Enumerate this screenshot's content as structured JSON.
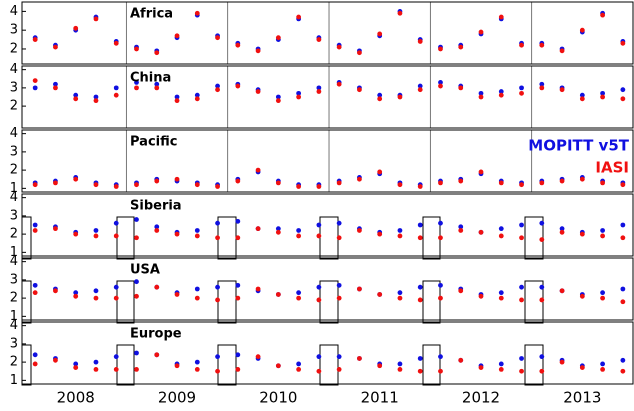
{
  "chart_data": [
    {
      "type": "scatter",
      "title": "Africa",
      "xlim": [
        2007.97,
        2014.0
      ],
      "ylim": [
        1.2,
        4.5
      ],
      "yticks": [
        2,
        3,
        4
      ],
      "vlines": [
        2009,
        2010,
        2011,
        2012,
        2013
      ],
      "x": [
        2008.1,
        2008.3,
        2008.5,
        2008.7,
        2008.9,
        2009.1,
        2009.3,
        2009.5,
        2009.7,
        2009.9,
        2010.1,
        2010.3,
        2010.5,
        2010.7,
        2010.9,
        2011.1,
        2011.3,
        2011.5,
        2011.7,
        2011.9,
        2012.1,
        2012.3,
        2012.5,
        2012.7,
        2012.9,
        2013.1,
        2013.3,
        2013.5,
        2013.7,
        2013.9
      ],
      "series": [
        {
          "color": "#1010e0",
          "values": [
            2.6,
            2.2,
            3.0,
            3.7,
            2.4,
            2.1,
            1.9,
            2.6,
            3.8,
            2.7,
            2.3,
            2.0,
            2.5,
            3.6,
            2.6,
            2.2,
            1.9,
            2.7,
            4.0,
            2.5,
            2.1,
            2.2,
            2.8,
            3.6,
            2.3,
            2.3,
            2.0,
            2.9,
            3.9,
            2.4
          ]
        },
        {
          "color": "#f01010",
          "values": [
            2.5,
            2.1,
            3.1,
            3.6,
            2.3,
            2.0,
            1.8,
            2.7,
            3.9,
            2.6,
            2.2,
            1.9,
            2.6,
            3.7,
            2.5,
            2.1,
            1.8,
            2.8,
            3.9,
            2.4,
            2.0,
            2.1,
            2.9,
            3.7,
            2.2,
            2.2,
            1.9,
            3.0,
            3.8,
            2.3
          ]
        }
      ]
    },
    {
      "type": "scatter",
      "title": "China",
      "xlim": [
        2007.97,
        2014.0
      ],
      "ylim": [
        0.8,
        4.2
      ],
      "yticks": [
        2,
        3,
        4
      ],
      "vlines": [
        2009,
        2010,
        2011,
        2012,
        2013
      ],
      "x": [
        2008.1,
        2008.3,
        2008.5,
        2008.7,
        2008.9,
        2009.1,
        2009.3,
        2009.5,
        2009.7,
        2009.9,
        2010.1,
        2010.3,
        2010.5,
        2010.7,
        2010.9,
        2011.1,
        2011.3,
        2011.5,
        2011.7,
        2011.9,
        2012.1,
        2012.3,
        2012.5,
        2012.7,
        2012.9,
        2013.1,
        2013.3,
        2013.5,
        2013.7,
        2013.9
      ],
      "series": [
        {
          "color": "#1010e0",
          "values": [
            3.0,
            3.2,
            2.6,
            2.5,
            3.0,
            3.3,
            3.2,
            2.5,
            2.6,
            3.1,
            3.2,
            2.9,
            2.5,
            2.7,
            3.0,
            3.3,
            3.0,
            2.6,
            2.6,
            3.1,
            3.3,
            3.1,
            2.7,
            2.8,
            3.0,
            3.2,
            3.0,
            2.6,
            2.7,
            2.9
          ]
        },
        {
          "color": "#f01010",
          "values": [
            3.4,
            3.0,
            2.4,
            2.3,
            2.6,
            3.0,
            3.0,
            2.3,
            2.4,
            2.9,
            3.1,
            2.8,
            2.3,
            2.5,
            2.8,
            3.2,
            2.9,
            2.4,
            2.5,
            2.9,
            3.1,
            3.0,
            2.5,
            2.6,
            2.7,
            3.0,
            2.9,
            2.4,
            2.5,
            2.4
          ]
        }
      ]
    },
    {
      "type": "scatter",
      "title": "Pacific",
      "xlim": [
        2007.97,
        2014.0
      ],
      "ylim": [
        0.8,
        4.2
      ],
      "yticks": [
        1,
        2,
        3,
        4
      ],
      "vlines": [
        2009,
        2010,
        2011,
        2012,
        2013
      ],
      "legend": "right",
      "x": [
        2008.1,
        2008.3,
        2008.5,
        2008.7,
        2008.9,
        2009.1,
        2009.3,
        2009.5,
        2009.7,
        2009.9,
        2010.1,
        2010.3,
        2010.5,
        2010.7,
        2010.9,
        2011.1,
        2011.3,
        2011.5,
        2011.7,
        2011.9,
        2012.1,
        2012.3,
        2012.5,
        2012.7,
        2012.9,
        2013.1,
        2013.3,
        2013.5,
        2013.7,
        2013.9
      ],
      "series": [
        {
          "name": "MOPITT v5T",
          "color": "#1010e0",
          "values": [
            1.3,
            1.4,
            1.6,
            1.3,
            1.2,
            1.3,
            1.5,
            1.4,
            1.3,
            1.2,
            1.5,
            1.9,
            1.4,
            1.2,
            1.2,
            1.4,
            1.6,
            1.8,
            1.3,
            1.2,
            1.4,
            1.5,
            1.8,
            1.4,
            1.3,
            1.4,
            1.5,
            1.6,
            1.4,
            1.3
          ]
        },
        {
          "name": "IASI",
          "color": "#f01010",
          "values": [
            1.2,
            1.3,
            1.5,
            1.2,
            1.1,
            1.2,
            1.4,
            1.5,
            1.2,
            1.1,
            1.4,
            2.0,
            1.3,
            1.1,
            1.1,
            1.3,
            1.5,
            1.9,
            1.2,
            1.1,
            1.3,
            1.4,
            1.9,
            1.3,
            1.2,
            1.3,
            1.4,
            1.5,
            1.3,
            1.2
          ]
        }
      ]
    },
    {
      "type": "scatter",
      "title": "Siberia",
      "xlim": [
        2007.97,
        2014.0
      ],
      "ylim": [
        0.8,
        4.2
      ],
      "yticks": [
        1,
        2,
        3,
        4
      ],
      "x": [
        2008.1,
        2008.3,
        2008.5,
        2008.7,
        2008.9,
        2009.1,
        2009.3,
        2009.5,
        2009.7,
        2009.9,
        2010.1,
        2010.3,
        2010.5,
        2010.7,
        2010.9,
        2011.1,
        2011.3,
        2011.5,
        2011.7,
        2011.9,
        2012.1,
        2012.3,
        2012.5,
        2012.7,
        2012.9,
        2013.1,
        2013.3,
        2013.5,
        2013.7,
        2013.9
      ],
      "series": [
        {
          "color": "#1010e0",
          "values": [
            2.5,
            2.4,
            2.1,
            2.2,
            2.6,
            2.8,
            2.4,
            2.1,
            2.2,
            2.6,
            2.7,
            2.3,
            2.3,
            2.2,
            2.5,
            2.6,
            2.3,
            2.1,
            2.2,
            2.5,
            2.6,
            2.4,
            2.1,
            2.3,
            2.5,
            2.6,
            2.3,
            2.1,
            2.2,
            2.5
          ]
        },
        {
          "color": "#f01010",
          "values": [
            2.2,
            2.3,
            2.0,
            1.9,
            1.9,
            1.8,
            2.2,
            2.0,
            1.9,
            1.8,
            1.8,
            2.3,
            2.1,
            1.9,
            1.9,
            1.8,
            2.2,
            2.0,
            1.9,
            1.8,
            1.8,
            2.2,
            2.1,
            1.9,
            1.8,
            1.7,
            2.1,
            2.0,
            1.9,
            1.8
          ]
        }
      ]
    },
    {
      "type": "scatter",
      "title": "USA",
      "xlim": [
        2007.97,
        2014.0
      ],
      "ylim": [
        0.8,
        4.2
      ],
      "yticks": [
        1,
        2,
        3,
        4
      ],
      "x": [
        2008.1,
        2008.3,
        2008.5,
        2008.7,
        2008.9,
        2009.1,
        2009.3,
        2009.5,
        2009.7,
        2009.9,
        2010.1,
        2010.3,
        2010.5,
        2010.7,
        2010.9,
        2011.1,
        2011.3,
        2011.5,
        2011.7,
        2011.9,
        2012.1,
        2012.3,
        2012.5,
        2012.7,
        2012.9,
        2013.1,
        2013.3,
        2013.5,
        2013.7,
        2013.9
      ],
      "series": [
        {
          "color": "#1010e0",
          "values": [
            2.7,
            2.5,
            2.3,
            2.4,
            2.6,
            2.9,
            2.6,
            2.3,
            2.5,
            2.6,
            2.7,
            2.4,
            2.2,
            2.3,
            2.6,
            2.7,
            2.5,
            2.2,
            2.3,
            2.6,
            2.7,
            2.5,
            2.2,
            2.3,
            2.6,
            2.6,
            2.4,
            2.2,
            2.3,
            2.5
          ]
        },
        {
          "color": "#f01010",
          "values": [
            2.3,
            2.4,
            2.1,
            2.0,
            2.0,
            2.1,
            2.6,
            2.2,
            2.0,
            1.9,
            2.0,
            2.5,
            2.2,
            2.0,
            1.9,
            2.0,
            2.5,
            2.2,
            2.0,
            1.9,
            2.0,
            2.4,
            2.1,
            2.0,
            1.9,
            1.9,
            2.4,
            2.1,
            2.0,
            1.8
          ]
        }
      ]
    },
    {
      "type": "scatter",
      "title": "Europe",
      "xlim": [
        2007.97,
        2014.0
      ],
      "ylim": [
        0.8,
        4.2
      ],
      "yticks": [
        1,
        2,
        3,
        4
      ],
      "xticks": [
        {
          "value": 2008.5,
          "label": "2008"
        },
        {
          "value": 2009.5,
          "label": "2009"
        },
        {
          "value": 2010.5,
          "label": "2010"
        },
        {
          "value": 2011.5,
          "label": "2011"
        },
        {
          "value": 2012.5,
          "label": "2012"
        },
        {
          "value": 2013.5,
          "label": "2013"
        }
      ],
      "x": [
        2008.1,
        2008.3,
        2008.5,
        2008.7,
        2008.9,
        2009.1,
        2009.3,
        2009.5,
        2009.7,
        2009.9,
        2010.1,
        2010.3,
        2010.5,
        2010.7,
        2010.9,
        2011.1,
        2011.3,
        2011.5,
        2011.7,
        2011.9,
        2012.1,
        2012.3,
        2012.5,
        2012.7,
        2012.9,
        2013.1,
        2013.3,
        2013.5,
        2013.7,
        2013.9
      ],
      "series": [
        {
          "color": "#1010e0",
          "values": [
            2.4,
            2.2,
            1.9,
            2.0,
            2.3,
            2.5,
            2.4,
            1.9,
            2.0,
            2.3,
            2.4,
            2.2,
            1.8,
            1.9,
            2.3,
            2.3,
            2.2,
            1.9,
            1.9,
            2.2,
            2.3,
            2.1,
            1.8,
            1.9,
            2.2,
            2.3,
            2.1,
            1.8,
            1.9,
            2.1
          ]
        },
        {
          "color": "#f01010",
          "values": [
            1.9,
            2.1,
            1.7,
            1.6,
            1.6,
            1.6,
            2.4,
            1.8,
            1.6,
            1.5,
            1.6,
            2.3,
            1.8,
            1.6,
            1.5,
            1.6,
            2.2,
            1.8,
            1.6,
            1.5,
            1.5,
            2.1,
            1.7,
            1.6,
            1.5,
            1.5,
            2.0,
            1.7,
            1.6,
            1.5
          ]
        }
      ]
    }
  ]
}
